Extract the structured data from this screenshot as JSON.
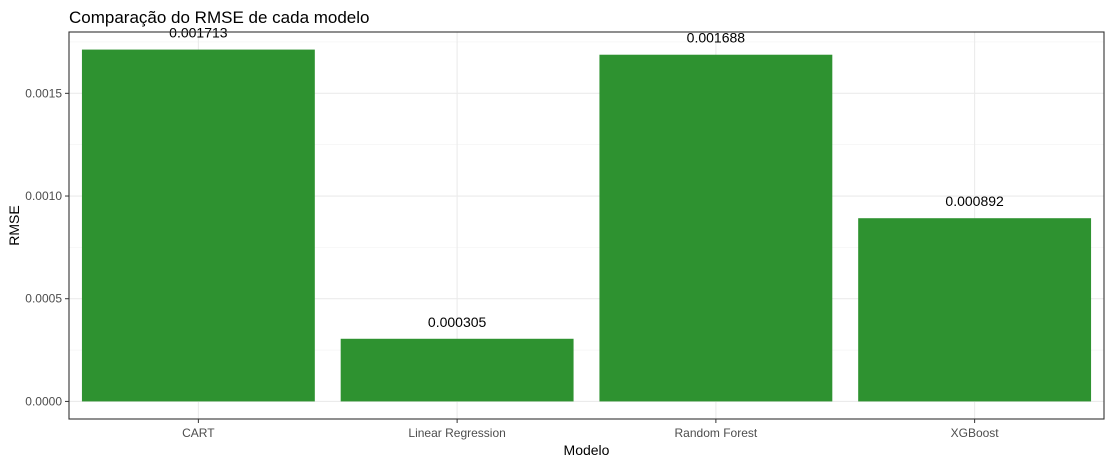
{
  "chart_data": {
    "type": "bar",
    "title": "Comparação do RMSE de cada modelo",
    "xlabel": "Modelo",
    "ylabel": "RMSE",
    "categories": [
      "CART",
      "Linear Regression",
      "Random Forest",
      "XGBoost"
    ],
    "values": [
      0.001713,
      0.000305,
      0.001688,
      0.000892
    ],
    "value_labels": [
      "0.001713",
      "0.000305",
      "0.001688",
      "0.000892"
    ],
    "ylim": [
      -8.56e-05,
      0.0017986
    ],
    "yticks": [
      0.0,
      0.0005,
      0.001,
      0.0015
    ],
    "ytick_labels": [
      "0.0000",
      "0.0005",
      "0.0010",
      "0.0015"
    ],
    "grid": true,
    "legend": "none",
    "bar_color": "#2E9230"
  }
}
